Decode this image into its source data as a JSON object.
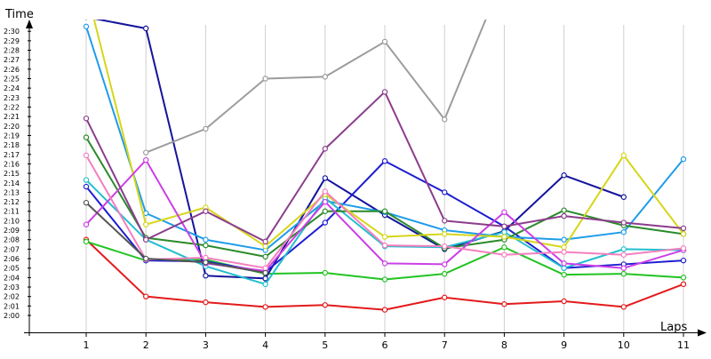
{
  "chart_data": {
    "type": "line",
    "xlabel": "Laps",
    "ylabel": "Time",
    "x": [
      1,
      2,
      3,
      4,
      5,
      6,
      7,
      8,
      9,
      10,
      11
    ],
    "x_tick_labels": [
      "1",
      "2",
      "3",
      "4",
      "5",
      "6",
      "7",
      "8",
      "9",
      "10",
      "11"
    ],
    "y_tick_labels": [
      "2:00",
      "2:01",
      "2:02",
      "2:03",
      "2:04",
      "2:05",
      "2:06",
      "2:07",
      "2:08",
      "2:09",
      "2:10",
      "2:11",
      "2:12",
      "2:13",
      "2:14",
      "2:15",
      "2:16",
      "2:17",
      "2:18",
      "2:19",
      "2:20",
      "2:21",
      "2:22",
      "2:23",
      "2:24",
      "2:25",
      "2:26",
      "2:27",
      "2:28",
      "2:29",
      "2:30"
    ],
    "y_unit": "seconds",
    "ylim": [
      119.3,
      153.5
    ],
    "grid": true,
    "series": [
      {
        "color": "#e31a1c",
        "values": [
          128.0,
          122.0,
          121.4,
          120.9,
          121.1,
          120.6,
          121.9,
          121.2,
          121.5,
          120.9,
          123.3
        ]
      },
      {
        "color": "#22c322",
        "values": [
          127.8,
          125.8,
          125.9,
          124.4,
          124.5,
          123.8,
          124.4,
          127.2,
          124.3,
          124.4,
          124.0
        ]
      },
      {
        "color": "#14149c",
        "values": [
          151.5,
          150.3,
          124.2,
          123.9,
          134.5,
          130.6,
          127.0,
          128.9,
          134.8,
          132.5,
          null
        ]
      },
      {
        "color": "#1e1ed0",
        "values": [
          133.6,
          125.8,
          125.7,
          124.6,
          129.8,
          136.3,
          133.0,
          129.4,
          125.0,
          125.4,
          125.8
        ]
      },
      {
        "color": "#1e9ce8",
        "values": [
          150.5,
          130.8,
          128.0,
          126.9,
          132.1,
          130.9,
          129.0,
          128.3,
          128.0,
          128.8,
          136.5
        ]
      },
      {
        "color": "#22bfcf",
        "values": [
          134.3,
          128.0,
          125.2,
          123.3,
          132.4,
          127.3,
          127.2,
          128.8,
          125.0,
          127.0,
          126.9
        ]
      },
      {
        "color": "#2a8a2a",
        "values": [
          138.8,
          128.2,
          127.4,
          126.2,
          131.0,
          131.0,
          127.1,
          128.0,
          131.1,
          129.5,
          128.6
        ]
      },
      {
        "color": "#d6d61a",
        "values": [
          154.5,
          129.6,
          131.4,
          127.3,
          132.8,
          128.3,
          128.6,
          128.3,
          127.2,
          136.9,
          128.6
        ]
      },
      {
        "color": "#cc3fe6",
        "values": [
          129.6,
          136.4,
          125.5,
          124.7,
          132.0,
          125.5,
          125.4,
          130.9,
          125.5,
          125.0,
          126.9
        ]
      },
      {
        "color": "#f47fbf",
        "values": [
          136.9,
          125.9,
          126.1,
          125.0,
          133.1,
          127.4,
          127.3,
          126.4,
          126.7,
          126.4,
          127.1
        ]
      },
      {
        "color": "#8c3d8c",
        "values": [
          140.8,
          128.0,
          131.0,
          127.8,
          137.6,
          143.6,
          130.0,
          129.4,
          130.5,
          129.8,
          129.2
        ]
      },
      {
        "color": "#555555",
        "values": [
          131.9,
          126.0,
          125.6,
          124.5,
          null,
          null,
          null,
          null,
          null,
          null,
          null
        ]
      },
      {
        "color": "#9c9c9c",
        "values": [
          null,
          137.2,
          139.7,
          145.0,
          145.2,
          148.9,
          140.7,
          156.0,
          null,
          null,
          null
        ]
      }
    ]
  }
}
